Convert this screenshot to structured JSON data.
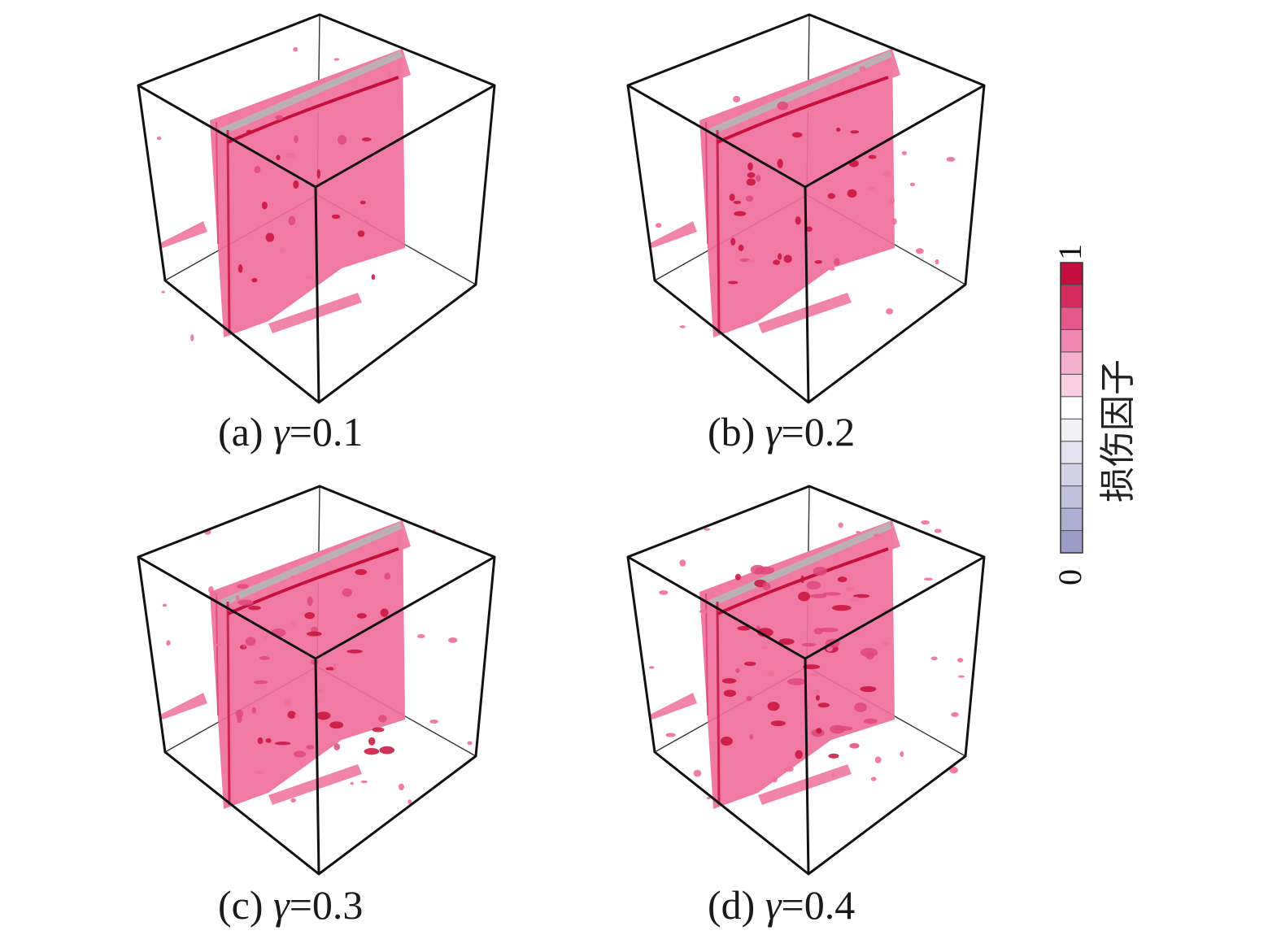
{
  "panels": [
    {
      "id": "a",
      "caption_prefix": "(a) ",
      "symbol": "γ",
      "caption_value": "=0.1"
    },
    {
      "id": "b",
      "caption_prefix": "(b) ",
      "symbol": "γ",
      "caption_value": "=0.2"
    },
    {
      "id": "c",
      "caption_prefix": "(c) ",
      "symbol": "γ",
      "caption_value": "=0.3"
    },
    {
      "id": "d",
      "caption_prefix": "(d) ",
      "symbol": "γ",
      "caption_value": "=0.4"
    }
  ],
  "colorbar": {
    "label": "损伤因子",
    "min_label": "0",
    "max_label": "1",
    "range": [
      0,
      1
    ],
    "colors": [
      "#9d9cc6",
      "#aeaed2",
      "#c0bfdc",
      "#d2d1e6",
      "#e3e2ee",
      "#f1f0f5",
      "#ffffff",
      "#f8cfe0",
      "#f4b0cc",
      "#ee88b0",
      "#e3578a",
      "#d42c5f",
      "#c40f3e"
    ]
  },
  "colors": {
    "damage_fill": "#ef6f9b",
    "damage_dark": "#c8103c",
    "cube_edge": "#111111"
  }
}
